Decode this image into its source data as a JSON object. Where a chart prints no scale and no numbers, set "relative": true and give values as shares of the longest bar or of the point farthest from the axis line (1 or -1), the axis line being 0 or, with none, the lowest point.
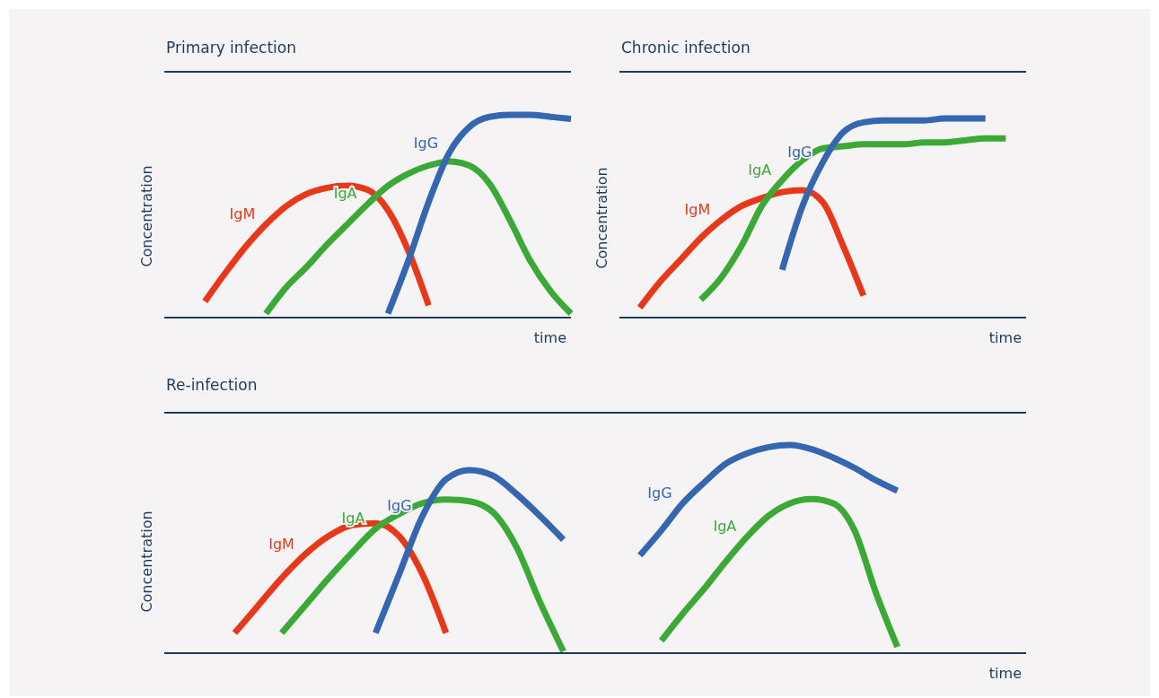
{
  "chart_data": [
    {
      "type": "line",
      "title": "Primary infection",
      "xlabel": "time",
      "ylabel": "Concentration",
      "relative": true,
      "categories": [
        null,
        null,
        null,
        null,
        null,
        null,
        null,
        null,
        null,
        null,
        null,
        null,
        null,
        null,
        null,
        null,
        null,
        null,
        null,
        null,
        null
      ],
      "series": [
        {
          "name": "IgM",
          "color": "#e8381a",
          "values": [
            null,
            null,
            0.08,
            0.22,
            0.35,
            0.46,
            0.55,
            0.61,
            0.64,
            0.65,
            0.63,
            0.53,
            0.33,
            0.06,
            null,
            null,
            null,
            null,
            null,
            null,
            null
          ]
        },
        {
          "name": "IgA",
          "color": "#3aa935",
          "values": [
            null,
            null,
            null,
            null,
            null,
            0.02,
            0.15,
            0.25,
            0.36,
            0.46,
            0.56,
            0.65,
            0.71,
            0.75,
            0.77,
            0.75,
            0.66,
            0.48,
            0.28,
            0.13,
            0.02
          ]
        },
        {
          "name": "IgG",
          "color": "#3566b0",
          "values": [
            null,
            null,
            null,
            null,
            null,
            null,
            null,
            null,
            null,
            null,
            null,
            0.02,
            0.28,
            0.57,
            0.81,
            0.94,
            0.99,
            1,
            1,
            0.99,
            0.98
          ]
        }
      ]
    },
    {
      "type": "line",
      "title": "Chronic infection",
      "xlabel": "time",
      "ylabel": "Concentration",
      "relative": true,
      "categories": [
        null,
        null,
        null,
        null,
        null,
        null,
        null,
        null,
        null,
        null,
        null,
        null,
        null,
        null,
        null,
        null,
        null,
        null,
        null,
        null,
        null
      ],
      "series": [
        {
          "name": "IgM",
          "color": "#e8381a",
          "values": [
            null,
            0.05,
            0.18,
            0.29,
            0.4,
            0.49,
            0.56,
            0.6,
            0.63,
            0.64,
            0.58,
            0.36,
            0.11,
            null,
            null,
            null,
            null,
            null,
            null,
            null,
            null
          ]
        },
        {
          "name": "IgA",
          "color": "#3aa935",
          "values": [
            null,
            null,
            null,
            null,
            0.09,
            0.2,
            0.36,
            0.56,
            0.69,
            0.79,
            0.85,
            0.86,
            0.87,
            0.87,
            0.87,
            0.88,
            0.88,
            0.89,
            0.9,
            0.9,
            null
          ]
        },
        {
          "name": "IgG",
          "color": "#3566b0",
          "values": [
            null,
            null,
            null,
            null,
            null,
            null,
            null,
            null,
            0.24,
            0.56,
            0.78,
            0.93,
            0.98,
            0.99,
            0.99,
            0.99,
            1,
            1,
            1,
            null,
            null
          ]
        }
      ]
    },
    {
      "type": "line",
      "title": "Re-infection",
      "ylabel": "Concentration",
      "relative": true,
      "categories": [
        null,
        null,
        null,
        null,
        null,
        null,
        null,
        null,
        null,
        null,
        null,
        null,
        null,
        null,
        null,
        null,
        null,
        null,
        null,
        null,
        null
      ],
      "series": [
        {
          "name": "IgM",
          "color": "#e8381a",
          "values": [
            null,
            null,
            null,
            0.11,
            0.26,
            0.41,
            0.54,
            0.64,
            0.7,
            0.71,
            0.64,
            0.43,
            0.11,
            null,
            null,
            null,
            null,
            null,
            null,
            null,
            null
          ]
        },
        {
          "name": "IgA",
          "color": "#3aa935",
          "values": [
            null,
            null,
            null,
            null,
            null,
            0.11,
            0.26,
            0.41,
            0.55,
            0.68,
            0.76,
            0.82,
            0.84,
            0.83,
            0.77,
            0.58,
            0.28,
            0.01,
            null,
            null,
            null
          ]
        },
        {
          "name": "IgG",
          "color": "#3566b0",
          "values": [
            null,
            null,
            null,
            null,
            null,
            null,
            null,
            null,
            null,
            0.11,
            0.43,
            0.75,
            0.95,
            1,
            0.97,
            0.87,
            0.75,
            0.62,
            null,
            null,
            null
          ]
        }
      ]
    },
    {
      "type": "line",
      "xlabel": "time",
      "relative": true,
      "categories": [
        null,
        null,
        null,
        null,
        null,
        null,
        null,
        null,
        null,
        null,
        null,
        null,
        null,
        null,
        null,
        null,
        null,
        null,
        null,
        null,
        null
      ],
      "series": [
        {
          "name": "IgG",
          "color": "#3566b0",
          "values": [
            null,
            null,
            0.47,
            0.59,
            0.72,
            0.82,
            0.91,
            0.96,
            0.99,
            1,
            0.98,
            0.94,
            0.89,
            0.83,
            0.78,
            null,
            null,
            null,
            null,
            null,
            null
          ]
        },
        {
          "name": "IgA",
          "color": "#3aa935",
          "values": [
            null,
            null,
            null,
            0.06,
            0.19,
            0.31,
            0.44,
            0.56,
            0.66,
            0.72,
            0.74,
            0.72,
            0.59,
            0.29,
            0.03,
            null,
            null,
            null,
            null,
            null,
            null
          ]
        }
      ]
    }
  ]
}
